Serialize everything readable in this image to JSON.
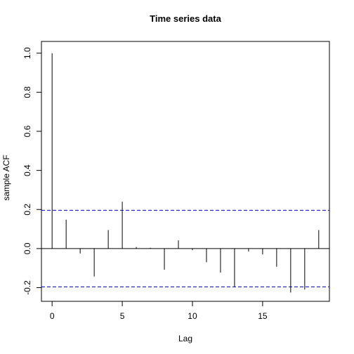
{
  "chart_data": {
    "type": "bar",
    "title": "Time series data",
    "xlabel": "Lag",
    "ylabel": "sample ACF",
    "xlim": [
      -0.76,
      19.76
    ],
    "ylim": [
      -0.27,
      1.06
    ],
    "x_ticks": [
      0,
      5,
      10,
      15
    ],
    "y_ticks": [
      -0.2,
      0.0,
      0.2,
      0.4,
      0.6,
      0.8,
      1.0
    ],
    "y_tick_labels": [
      "-0.2",
      "0.0",
      "0.2",
      "0.4",
      "0.6",
      "0.8",
      "1.0"
    ],
    "lags": [
      0,
      1,
      2,
      3,
      4,
      5,
      6,
      7,
      8,
      9,
      10,
      11,
      12,
      13,
      14,
      15,
      16,
      17,
      18,
      19
    ],
    "values": [
      1.0,
      0.148,
      -0.025,
      -0.143,
      0.095,
      0.24,
      0.008,
      0.004,
      -0.108,
      0.042,
      -0.008,
      -0.07,
      -0.123,
      -0.196,
      -0.015,
      -0.03,
      -0.093,
      -0.225,
      -0.21,
      0.095
    ],
    "confidence_limits": [
      0.196,
      -0.196
    ],
    "colors": {
      "spike": "#000000",
      "ci_line": "#0000cc",
      "axis": "#000000"
    },
    "grid": false,
    "legend": "none"
  }
}
